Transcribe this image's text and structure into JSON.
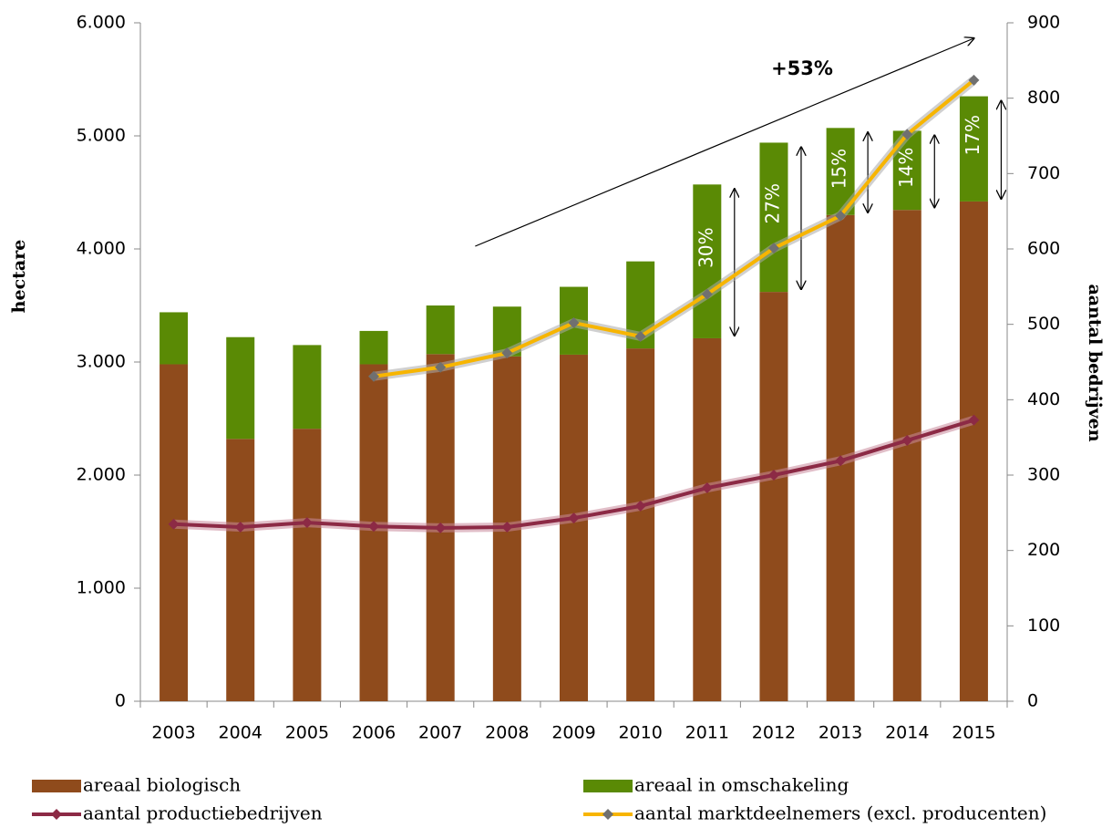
{
  "chart_data": {
    "type": "bar",
    "stacked": true,
    "categories": [
      "2003",
      "2004",
      "2005",
      "2006",
      "2007",
      "2008",
      "2009",
      "2010",
      "2011",
      "2012",
      "2013",
      "2014",
      "2015"
    ],
    "series": [
      {
        "name": "areaal biologisch",
        "type": "bar",
        "color": "#8f4b1c",
        "values": [
          2980,
          2320,
          2410,
          2980,
          3070,
          3050,
          3065,
          3120,
          3210,
          3620,
          4300,
          4345,
          4420
        ]
      },
      {
        "name": "areaal in omschakeling",
        "type": "bar",
        "color": "#5a8a05",
        "values": [
          460,
          900,
          740,
          295,
          430,
          440,
          600,
          770,
          1360,
          1320,
          770,
          700,
          930
        ]
      },
      {
        "name": "aantal productiebedrijven",
        "type": "line",
        "axis": "y2",
        "color": "#8c2a45",
        "values": [
          235,
          231,
          237,
          232,
          230,
          231,
          243,
          259,
          283,
          300,
          319,
          346,
          373
        ]
      },
      {
        "name": "aantal marktdeelnemers (excl. producenten)",
        "type": "line",
        "axis": "y2",
        "color": "#f7b500",
        "values": [
          null,
          null,
          null,
          431,
          443,
          462,
          502,
          484,
          540,
          601,
          644,
          752,
          824
        ]
      }
    ],
    "share_labels": [
      null,
      null,
      null,
      null,
      null,
      null,
      null,
      null,
      "30%",
      "27%",
      "15%",
      "14%",
      "17%"
    ],
    "growth_label": "+53%",
    "ylabel": "hectare",
    "y2label": "aantal bedrijven",
    "ylim": [
      0,
      6000
    ],
    "yticks": [
      0,
      {
        "value": 1000,
        "label": "1.000"
      },
      {
        "value": 2000,
        "label": "2.000"
      },
      {
        "value": 3000,
        "label": "3.000"
      },
      {
        "value": 4000,
        "label": "4.000"
      },
      {
        "value": 5000,
        "label": "5.000"
      },
      {
        "value": 6000,
        "label": "6.000"
      }
    ],
    "y2lim": [
      0,
      900
    ],
    "y2ticks": [
      0,
      100,
      200,
      300,
      400,
      500,
      600,
      700,
      800,
      900
    ]
  }
}
